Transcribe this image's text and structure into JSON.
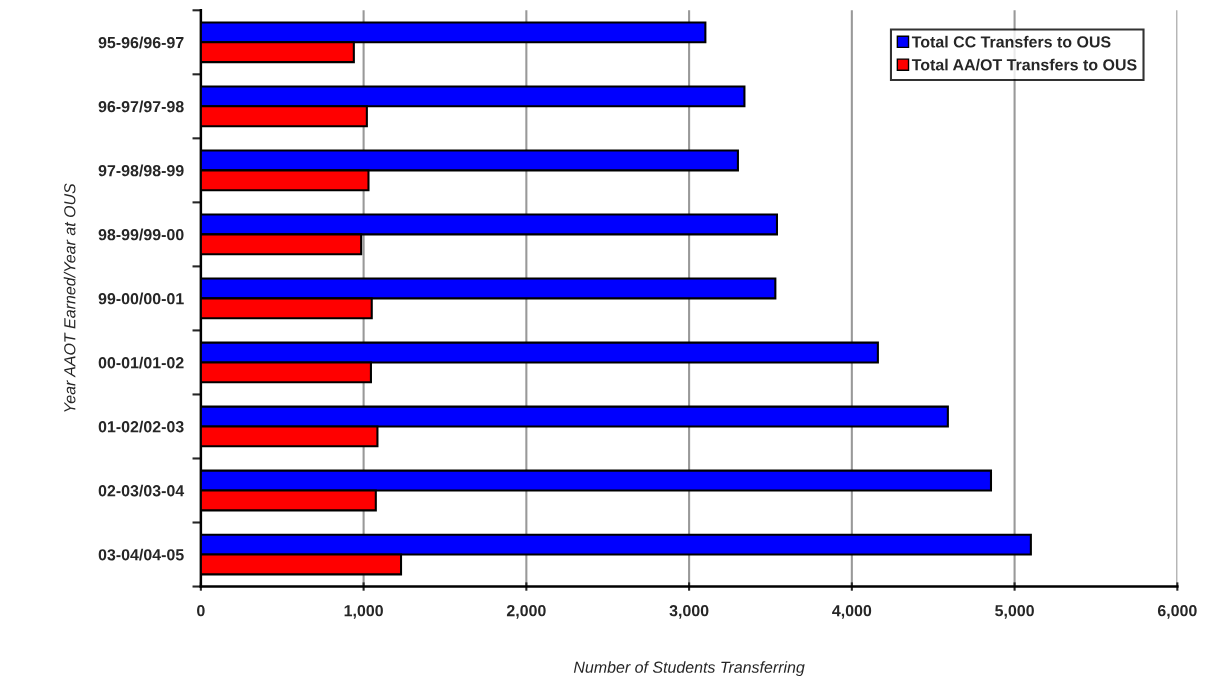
{
  "chart_data": {
    "type": "bar",
    "orientation": "horizontal",
    "categories": [
      "95-96/96-97",
      "96-97/97-98",
      "97-98/98-99",
      "98-99/99-00",
      "99-00/00-01",
      "00-01/01-02",
      "01-02/02-03",
      "02-03/03-04",
      "03-04/04-05"
    ],
    "series": [
      {
        "name": "Total CC Transfers to OUS",
        "color": "#0000ff",
        "values": [
          3100,
          3340,
          3300,
          3540,
          3530,
          4160,
          4590,
          4855,
          5100
        ]
      },
      {
        "name": "Total AA/OT Transfers to OUS",
        "color": "#ff0000",
        "values": [
          940,
          1020,
          1030,
          985,
          1050,
          1045,
          1085,
          1075,
          1230
        ]
      }
    ],
    "xlabel": "Number of Students Transferring",
    "ylabel": "Year AAOT Earned/Year at OUS",
    "xlim": [
      0,
      6000
    ],
    "xticks": [
      {
        "value": 0,
        "label": "0"
      },
      {
        "value": 1000,
        "label": "1,000"
      },
      {
        "value": 2000,
        "label": "2,000"
      },
      {
        "value": 3000,
        "label": "3,000"
      },
      {
        "value": 4000,
        "label": "4,000"
      },
      {
        "value": 5000,
        "label": "5,000"
      },
      {
        "value": 6000,
        "label": "6,000"
      }
    ],
    "grid": "x",
    "legend": "top right"
  }
}
